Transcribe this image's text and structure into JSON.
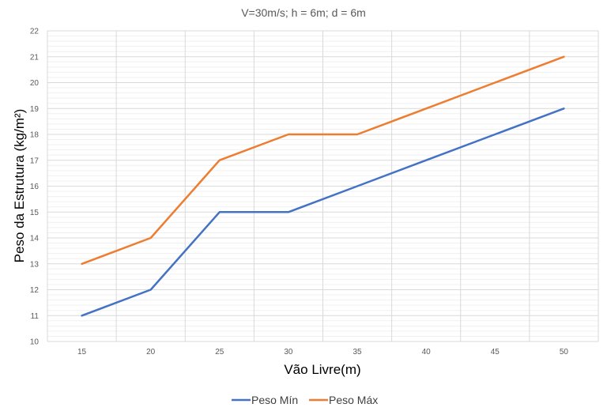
{
  "chart_data": {
    "type": "line",
    "title": "V=30m/s; h = 6m; d = 6m",
    "xlabel": "Vão Livre(m)",
    "ylabel": "Peso da Estrutura (kg/m²)",
    "x": [
      15,
      20,
      25,
      30,
      35,
      40,
      45,
      50
    ],
    "x_tick_labels": [
      "15",
      "20",
      "25",
      "30",
      "35",
      "40",
      "45",
      "50"
    ],
    "ylim": [
      10,
      22
    ],
    "y_tick_labels": [
      "10",
      "11",
      "12",
      "13",
      "14",
      "15",
      "16",
      "17",
      "18",
      "19",
      "20",
      "21",
      "22"
    ],
    "grid": true,
    "legend_position": "bottom",
    "series": [
      {
        "name": "Peso Mín",
        "color": "#4472C4",
        "values": [
          11,
          12,
          15,
          15,
          16,
          17,
          18,
          19
        ]
      },
      {
        "name": "Peso Máx",
        "color": "#ED7D31",
        "values": [
          13,
          14,
          17,
          18,
          18,
          19,
          20,
          21
        ]
      }
    ]
  }
}
